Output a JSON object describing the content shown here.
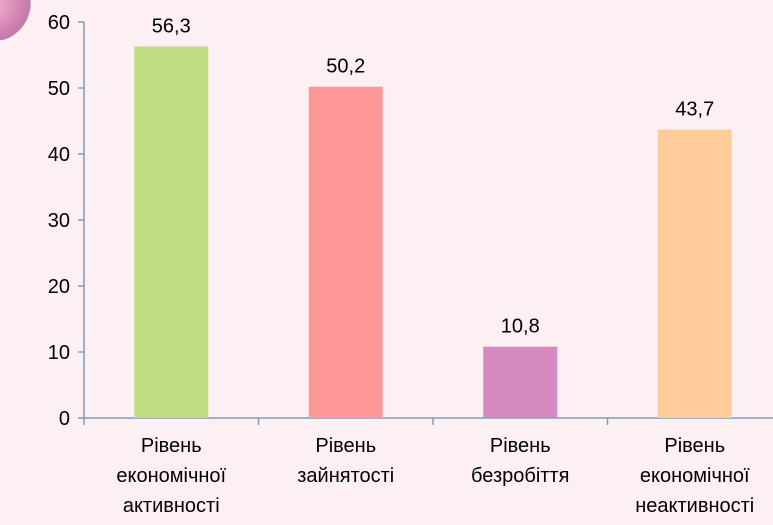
{
  "chart_data": {
    "type": "bar",
    "title": "",
    "xlabel": "",
    "ylabel": "",
    "ylim": [
      0,
      60
    ],
    "yticks": [
      0,
      10,
      20,
      30,
      40,
      50,
      60
    ],
    "grid": false,
    "categories": [
      [
        "Рівень",
        "економічної",
        "активності"
      ],
      [
        "Рівень",
        "зайнятості"
      ],
      [
        "Рівень",
        "безробіття"
      ],
      [
        "Рівень",
        "економічної",
        "неактивності"
      ]
    ],
    "values": [
      56.3,
      50.2,
      10.8,
      43.7
    ],
    "value_labels": [
      "56,3",
      "50,2",
      "10,8",
      "43,7"
    ],
    "colors": [
      "#c0dc80",
      "#ff9999",
      "#d48ac0",
      "#ffcc99"
    ]
  }
}
